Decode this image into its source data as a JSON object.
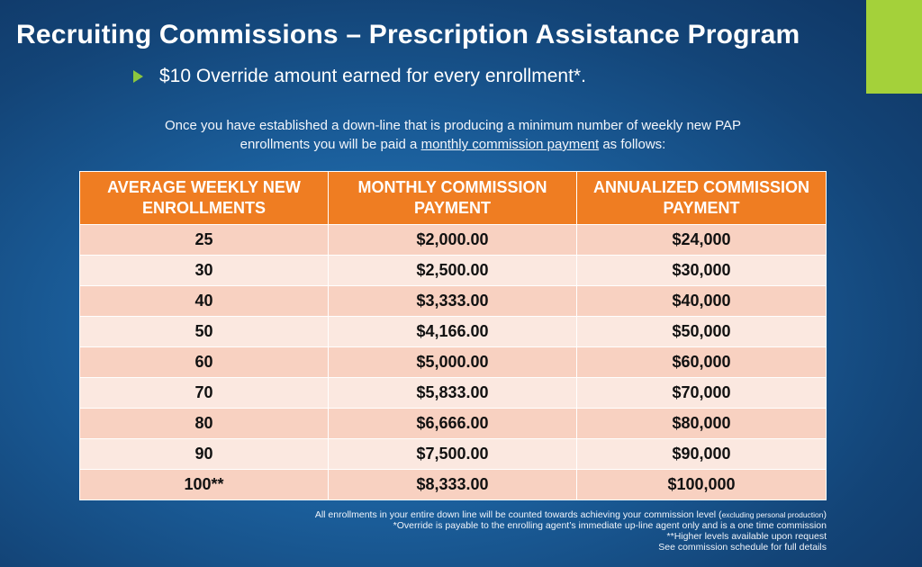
{
  "title": "Recruiting Commissions – Prescription Assistance Program",
  "bullet": "$10 Override amount earned for every enrollment*.",
  "intro": {
    "line1": "Once you have established a down-line that is producing a minimum number of weekly new PAP",
    "line2_before": "enrollments you will be paid a ",
    "line2_link": "monthly commission payment",
    "line2_after": " as follows:"
  },
  "table": {
    "headers": [
      "AVERAGE WEEKLY NEW ENROLLMENTS",
      "MONTHLY COMMISSION PAYMENT",
      "ANNUALIZED COMMISSION PAYMENT"
    ],
    "rows": [
      [
        "25",
        "$2,000.00",
        "$24,000"
      ],
      [
        "30",
        "$2,500.00",
        "$30,000"
      ],
      [
        "40",
        "$3,333.00",
        "$40,000"
      ],
      [
        "50",
        "$4,166.00",
        "$50,000"
      ],
      [
        "60",
        "$5,000.00",
        "$60,000"
      ],
      [
        "70",
        "$5,833.00",
        "$70,000"
      ],
      [
        "80",
        "$6,666.00",
        "$80,000"
      ],
      [
        "90",
        "$7,500.00",
        "$90,000"
      ],
      [
        "100**",
        "$8,333.00",
        "$100,000"
      ]
    ]
  },
  "footer": {
    "line1_main": "All enrollments in your entire down line will be counted towards achieving your commission level (",
    "line1_small": "excluding personal production",
    "line1_end": ")",
    "line2": "*Override is payable to the enrolling agent’s immediate up-line agent only and is a one time commission",
    "line3": "**Higher levels available upon request",
    "line4": "See commission schedule for full details"
  },
  "colors": {
    "header_orange": "#ef7d22",
    "row_dark": "#f8d1c1",
    "row_light": "#fbe8e0",
    "accent_green": "#a4d13a",
    "background_blue": "#1b5f9c"
  }
}
